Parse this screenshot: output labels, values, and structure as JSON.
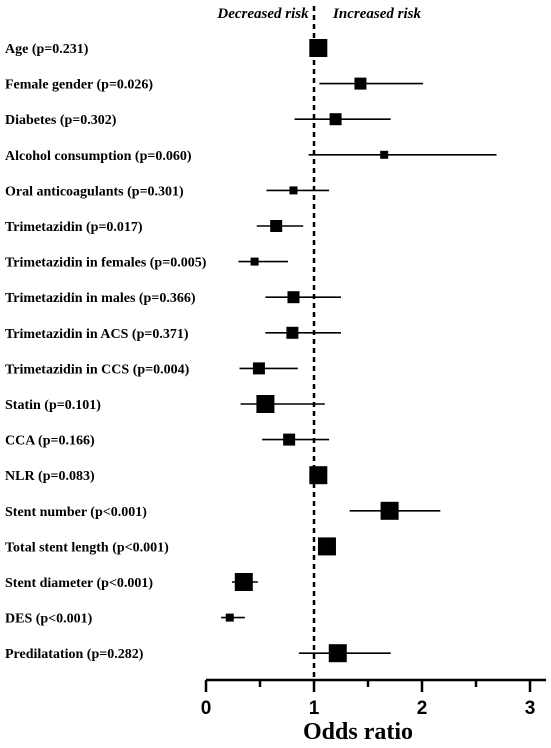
{
  "chart_data": {
    "type": "forest",
    "header_left": "Decreased risk",
    "header_right": "Increased risk",
    "xlabel": "Odds ratio",
    "xlim": [
      0,
      3.2
    ],
    "xticks": [
      "0",
      "1",
      "2",
      "3"
    ],
    "reference_line": 1,
    "rows": [
      {
        "label": "Age (p=0.231)",
        "or": 1.04,
        "ci": [
          1.0,
          1.08
        ],
        "weight": "large"
      },
      {
        "label": "Female gender (p=0.026)",
        "or": 1.43,
        "ci": [
          1.05,
          2.01
        ],
        "weight": "medium"
      },
      {
        "label": "Diabetes (p=0.302)",
        "or": 1.2,
        "ci": [
          0.82,
          1.71
        ],
        "weight": "medium"
      },
      {
        "label": "Alcohol consumption (p=0.060)",
        "or": 1.65,
        "ci": [
          0.95,
          2.69
        ],
        "weight": "small"
      },
      {
        "label": "Oral anticoagulants (p=0.301)",
        "or": 0.81,
        "ci": [
          0.56,
          1.14
        ],
        "weight": "small"
      },
      {
        "label": "Trimetazidin (p=0.017)",
        "or": 0.65,
        "ci": [
          0.47,
          0.9
        ],
        "weight": "medium"
      },
      {
        "label": "Trimetazidin in females (p=0.005)",
        "or": 0.45,
        "ci": [
          0.3,
          0.76
        ],
        "weight": "small"
      },
      {
        "label": "Trimetazidin in males (p=0.366)",
        "or": 0.81,
        "ci": [
          0.55,
          1.25
        ],
        "weight": "medium"
      },
      {
        "label": "Trimetazidin in ACS (p=0.371)",
        "or": 0.8,
        "ci": [
          0.55,
          1.25
        ],
        "weight": "medium"
      },
      {
        "label": "Trimetazidin in CCS (p=0.004)",
        "or": 0.49,
        "ci": [
          0.31,
          0.85
        ],
        "weight": "medium"
      },
      {
        "label": "Statin (p=0.101)",
        "or": 0.55,
        "ci": [
          0.32,
          1.1
        ],
        "weight": "large"
      },
      {
        "label": "CCA (p=0.166)",
        "or": 0.77,
        "ci": [
          0.52,
          1.14
        ],
        "weight": "medium"
      },
      {
        "label": "NLR (p=0.083)",
        "or": 1.04,
        "ci": [
          1.0,
          1.08
        ],
        "weight": "large"
      },
      {
        "label": "Stent number (p<0.001)",
        "or": 1.7,
        "ci": [
          1.33,
          2.17
        ],
        "weight": "large"
      },
      {
        "label": "Total stent length (p<0.001)",
        "or": 1.12,
        "ci": [
          1.07,
          1.17
        ],
        "weight": "large"
      },
      {
        "label": "Stent diameter (p<0.001)",
        "or": 0.35,
        "ci": [
          0.24,
          0.48
        ],
        "weight": "large"
      },
      {
        "label": "DES (p<0.001)",
        "or": 0.22,
        "ci": [
          0.14,
          0.36
        ],
        "weight": "small"
      },
      {
        "label": "Predilatation (p=0.282)",
        "or": 1.22,
        "ci": [
          0.86,
          1.71
        ],
        "weight": "large"
      }
    ]
  }
}
